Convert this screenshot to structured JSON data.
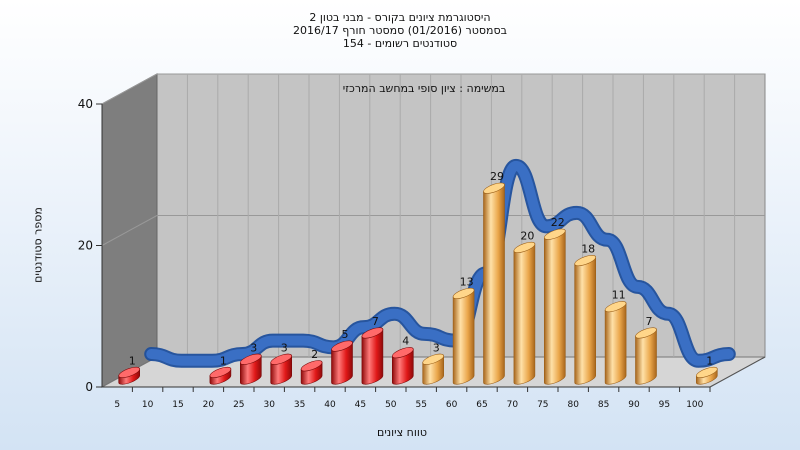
{
  "chart_data": {
    "type": "bar",
    "title_lines": [
      "היסטוגרמת ציונים בקורס - מבני בטון 2",
      "בסמסטר  (01/2016)  סמסטר חורף 2016/17",
      "סטודנטים רשומים - 154"
    ],
    "annotation": "במשימה : ציון סופי במחשב המרכזי",
    "xlabel": "טווח ציונים",
    "ylabel": "מספר סטודנטים",
    "ylim": [
      0,
      40
    ],
    "yticks": [
      "0",
      "20",
      "40"
    ],
    "categories": [
      "5",
      "10",
      "15",
      "20",
      "25",
      "30",
      "35",
      "40",
      "45",
      "50",
      "55",
      "60",
      "65",
      "70",
      "75",
      "80",
      "85",
      "90",
      "95",
      "100"
    ],
    "values": [
      1,
      0,
      0,
      1,
      3,
      3,
      2,
      5,
      7,
      4,
      3,
      13,
      29,
      20,
      22,
      18,
      11,
      7,
      0,
      1
    ],
    "bar_colors": {
      "below_55": "#e01818",
      "from_55": "#eaa64a"
    },
    "trend_line_color": "#3a6fc4",
    "grid": true
  }
}
